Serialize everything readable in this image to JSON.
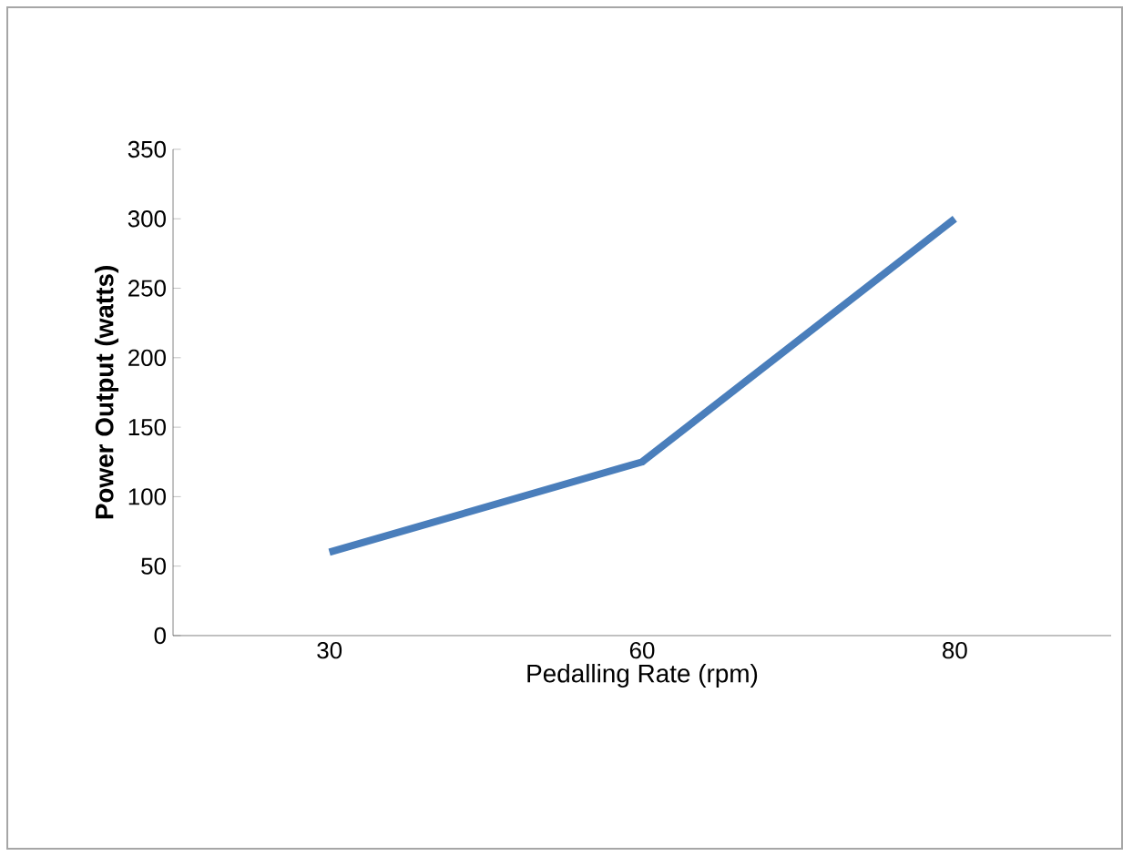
{
  "chart_data": {
    "type": "line",
    "xlabel": "Pedalling Rate (rpm)",
    "ylabel": "Power Output (watts)",
    "categories": [
      "30",
      "60",
      "80"
    ],
    "series": [
      {
        "color": "#4a7ebb",
        "values": [
          60,
          125,
          300
        ]
      }
    ],
    "ylim": [
      0,
      350
    ],
    "yticks": [
      0,
      50,
      100,
      150,
      200,
      250,
      300,
      350
    ],
    "grid": false,
    "marker": "none",
    "line_style": "solid"
  }
}
